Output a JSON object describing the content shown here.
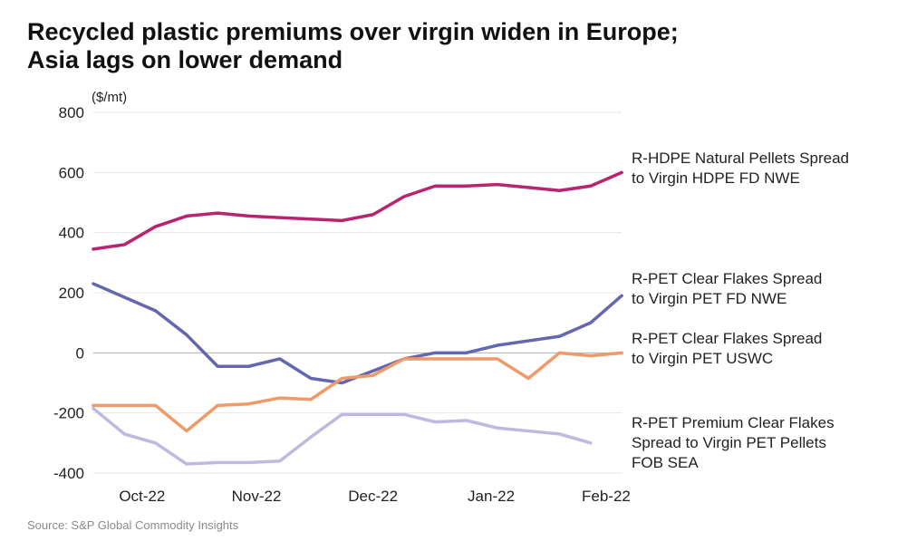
{
  "title_lines": [
    "Recycled plastic premiums over virgin widen in Europe;",
    "Asia lags on lower demand"
  ],
  "source": "Source: S&P Global Commodity Insights",
  "chart_data": {
    "type": "line",
    "unit_label": "($/mt)",
    "ylim": [
      -400,
      800
    ],
    "yticks": [
      -400,
      -200,
      0,
      200,
      400,
      600,
      800
    ],
    "xtick_labels": [
      "Oct-22",
      "Nov-22",
      "Dec-22",
      "Jan-22",
      "Feb-22"
    ],
    "grid": true,
    "legend": "right (inline labels at line ends)",
    "series": [
      {
        "name_lines": [
          "R-HDPE Natural Pellets Spread",
          "to Virgin HDPE FD NWE"
        ],
        "color": "#b8246e",
        "values": [
          345,
          360,
          420,
          455,
          465,
          455,
          450,
          445,
          440,
          460,
          520,
          555,
          555,
          560,
          550,
          540,
          555,
          600
        ]
      },
      {
        "name_lines": [
          "R-PET Clear Flakes Spread",
          "to Virgin PET FD NWE"
        ],
        "color": "#6466b0",
        "values": [
          230,
          185,
          140,
          60,
          -45,
          -45,
          -20,
          -85,
          -100,
          -60,
          -20,
          0,
          0,
          25,
          40,
          55,
          100,
          190
        ]
      },
      {
        "name_lines": [
          "R-PET Clear Flakes Spread",
          "to Virgin PET USWC"
        ],
        "color": "#ef9a68",
        "values": [
          -175,
          -175,
          -175,
          -260,
          -175,
          -170,
          -150,
          -155,
          -85,
          -75,
          -20,
          -20,
          -20,
          -20,
          -85,
          0,
          -10,
          0
        ]
      },
      {
        "name_lines": [
          "R-PET Premium Clear Flakes",
          "Spread to Virgin PET Pellets",
          "FOB SEA"
        ],
        "color": "#bdb9e1",
        "values": [
          -185,
          -270,
          -300,
          -370,
          -365,
          -365,
          -360,
          -280,
          -205,
          -205,
          -205,
          -230,
          -225,
          -250,
          -260,
          -270,
          -300
        ]
      }
    ]
  }
}
